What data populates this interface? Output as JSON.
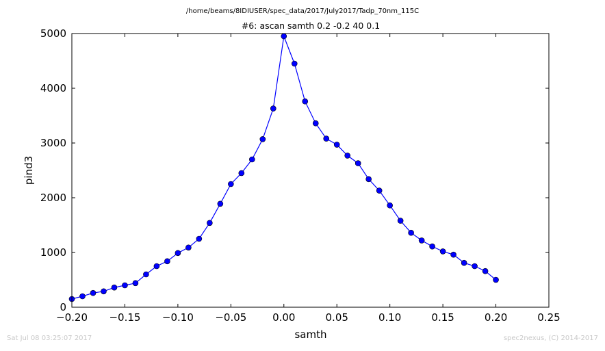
{
  "header": {
    "file_path": "/home/beams/8IDIUSER/spec_data/2017/July2017/Tadp_70nm_115C"
  },
  "footer": {
    "timestamp": "Sat Jul 08 03:25:07 2017",
    "credit": "spec2nexus, (C) 2014-2017"
  },
  "chart_data": {
    "type": "line",
    "title": "#6: ascan  samth 0.2 -0.2  40 0.1",
    "xlabel": "samth",
    "ylabel": "pind3",
    "xlim": [
      -0.2,
      0.25
    ],
    "ylim": [
      0,
      5000
    ],
    "xticks": [
      "−0.20",
      "−0.15",
      "−0.10",
      "−0.05",
      "0.00",
      "0.05",
      "0.10",
      "0.15",
      "0.20",
      "0.25"
    ],
    "yticks": [
      "0",
      "1000",
      "2000",
      "3000",
      "4000",
      "5000"
    ],
    "grid": false,
    "series_color": "#0000ff",
    "marker": "circle",
    "x": [
      -0.2,
      -0.19,
      -0.18,
      -0.17,
      -0.16,
      -0.15,
      -0.14,
      -0.13,
      -0.12,
      -0.11,
      -0.1,
      -0.09,
      -0.08,
      -0.07,
      -0.06,
      -0.05,
      -0.04,
      -0.03,
      -0.02,
      -0.01,
      0.0,
      0.01,
      0.02,
      0.03,
      0.04,
      0.05,
      0.06,
      0.07,
      0.08,
      0.09,
      0.1,
      0.11,
      0.12,
      0.13,
      0.14,
      0.15,
      0.16,
      0.17,
      0.18,
      0.19,
      0.2
    ],
    "y": [
      150,
      200,
      260,
      290,
      360,
      400,
      440,
      600,
      750,
      840,
      990,
      1090,
      1250,
      1540,
      1890,
      2250,
      2450,
      2700,
      3070,
      3630,
      4950,
      4450,
      3760,
      3360,
      3080,
      2970,
      2770,
      2630,
      2340,
      2130,
      1860,
      1580,
      1360,
      1220,
      1110,
      1020,
      960,
      810,
      750,
      660,
      500
    ]
  }
}
